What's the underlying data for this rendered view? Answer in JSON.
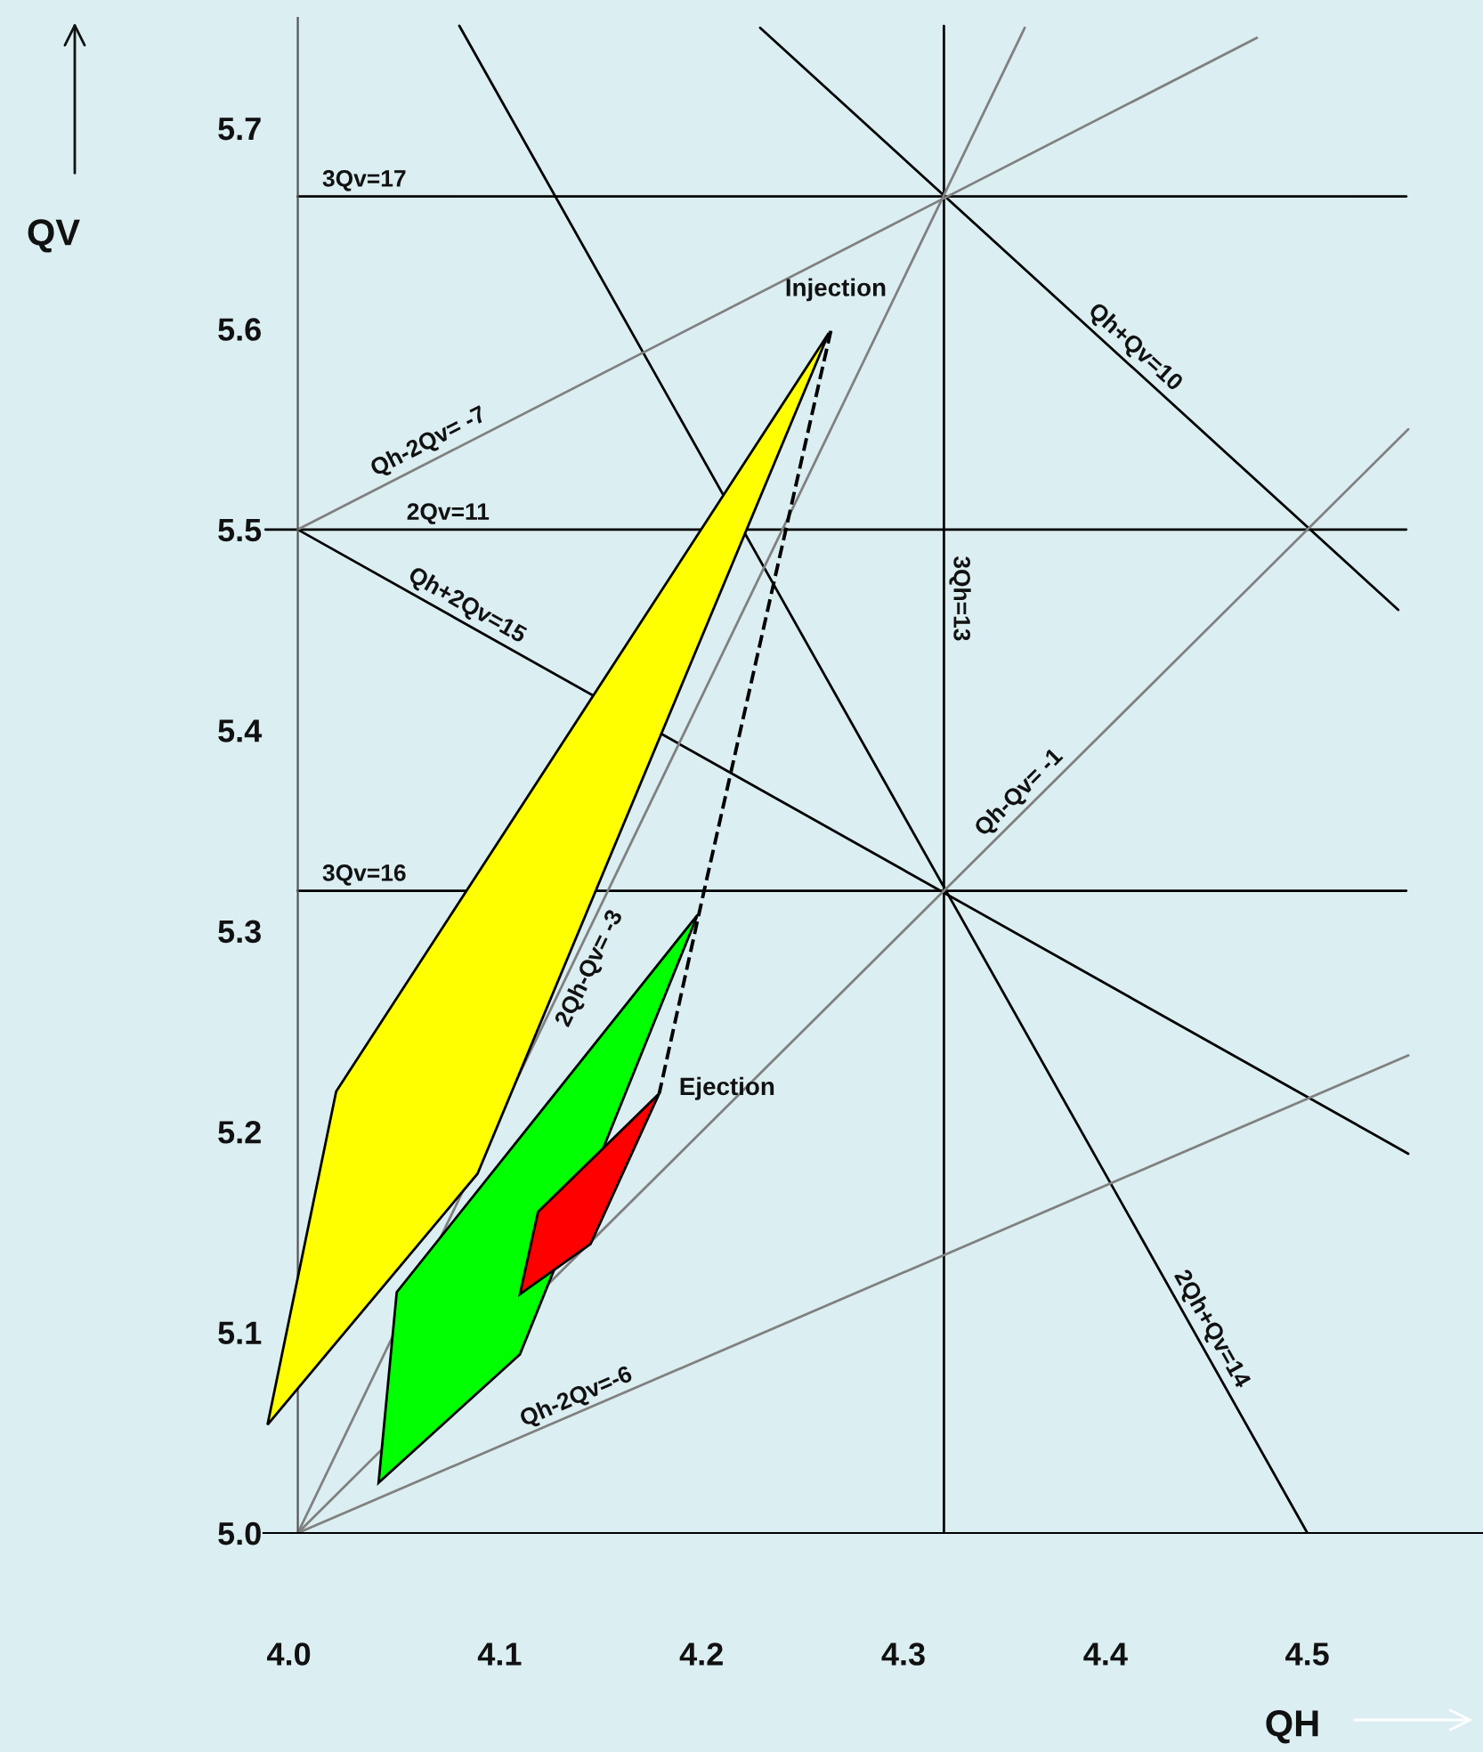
{
  "chart_data": {
    "type": "line",
    "xlabel": "QH",
    "ylabel": "QV",
    "xlim": [
      3.983,
      4.587
    ],
    "ylim": [
      5.0,
      5.755
    ],
    "xticks": [
      {
        "value": 4.0,
        "label": "4.0"
      },
      4.1,
      4.2,
      4.3,
      4.4,
      4.5
    ],
    "yticks": [
      {
        "value": 5.0,
        "label": "5.0"
      },
      5.1,
      5.2,
      5.3,
      5.4,
      5.5,
      5.6,
      5.7
    ],
    "grid": false,
    "legend": false,
    "series": [
      {
        "name": "3Qv=17",
        "color": "#000000",
        "x": [
          4.0,
          4.549
        ],
        "values": [
          5.666,
          5.666
        ]
      },
      {
        "name": "2Qv=11",
        "color": "#000000",
        "x": [
          3.984,
          4.549
        ],
        "values": [
          5.5,
          5.5
        ]
      },
      {
        "name": "3Qv=16",
        "color": "#000000",
        "x": [
          4.0,
          4.549
        ],
        "values": [
          5.32,
          5.32
        ]
      },
      {
        "name": "3Qh=13",
        "color": "#000000",
        "x": [
          4.32,
          4.32
        ],
        "values": [
          5.0,
          5.751
        ]
      },
      {
        "name": "Qh+Qv=10",
        "color": "#000000",
        "x": [
          4.229,
          4.545
        ],
        "values": [
          5.75,
          5.46
        ]
      },
      {
        "name": "Qh+2Qv=15",
        "color": "#000000",
        "x": [
          4.0,
          4.55
        ],
        "values": [
          5.5,
          5.189
        ]
      },
      {
        "name": "2Qh+Qv=14",
        "color": "#000000",
        "x": [
          4.08,
          4.5
        ],
        "values": [
          5.751,
          5.0
        ]
      },
      {
        "name": "Qh-2Qv= -7",
        "color": "#808080",
        "x": [
          4.0,
          4.475
        ],
        "values": [
          5.5,
          5.745
        ]
      },
      {
        "name": "2Qh-Qv= -3",
        "color": "#808080",
        "x": [
          4.0,
          4.36
        ],
        "values": [
          5.0,
          5.75
        ]
      },
      {
        "name": "Qh-Qv= -1",
        "color": "#808080",
        "x": [
          4.0,
          4.55
        ],
        "values": [
          5.0,
          5.55
        ]
      },
      {
        "name": "Qh-2Qv=-6",
        "color": "#808080",
        "x": [
          4.0,
          4.55
        ],
        "values": [
          5.0,
          5.238
        ]
      },
      {
        "line_style": "dashed",
        "color": "#000000",
        "x": [
          4.264,
          4.201,
          4.179
        ],
        "values": [
          5.599,
          5.319,
          5.219
        ]
      },
      {
        "type": "area",
        "color": "#ffff00",
        "x": [
          3.985,
          4.019,
          4.263,
          4.089
        ],
        "values": [
          5.054,
          5.22,
          5.598,
          5.179
        ]
      },
      {
        "type": "area",
        "color": "#00ff00",
        "x": [
          4.04,
          4.049,
          4.198,
          4.11
        ],
        "values": [
          5.025,
          5.12,
          5.308,
          5.089
        ]
      },
      {
        "type": "area",
        "color": "#ff0000",
        "x": [
          4.179,
          4.119,
          4.11,
          4.145
        ],
        "values": [
          5.219,
          5.16,
          5.119,
          5.144
        ]
      }
    ],
    "annotations": [
      {
        "text": "Injection",
        "x": 4.264,
        "y": 5.599
      },
      {
        "text": "Ejection",
        "x": 4.179,
        "y": 5.219
      }
    ]
  }
}
